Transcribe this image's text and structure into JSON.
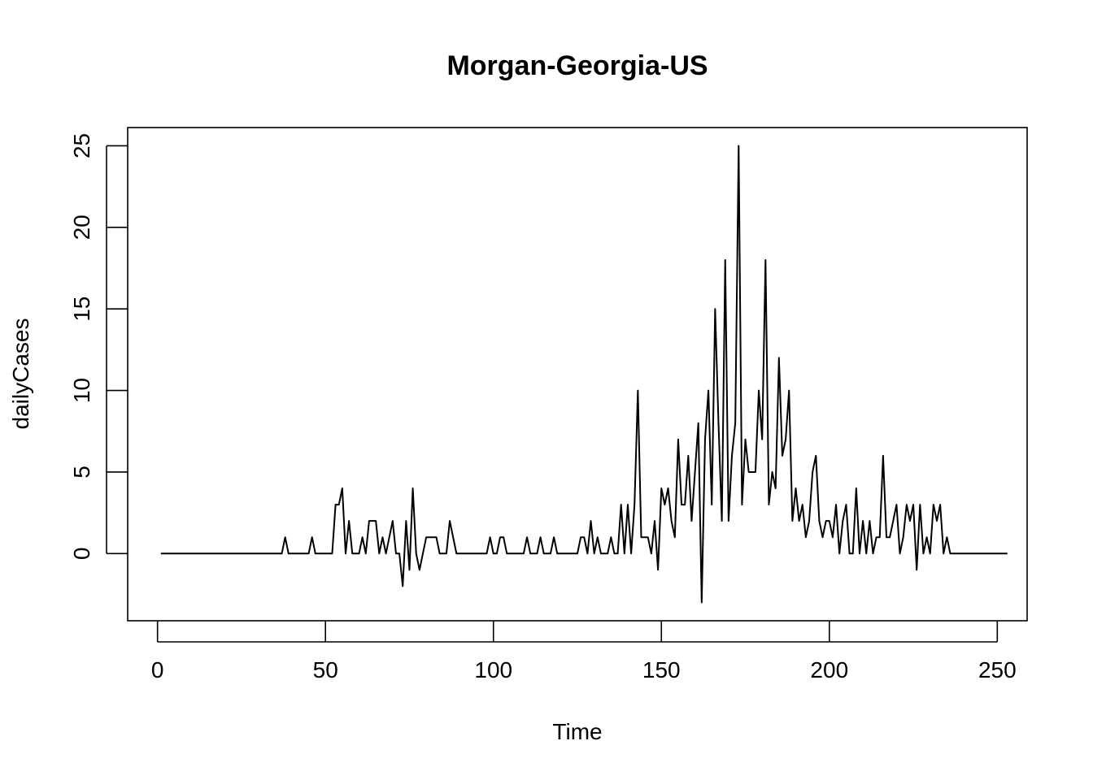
{
  "chart_data": {
    "type": "line",
    "title": "Morgan-Georgia-US",
    "xlabel": "Time",
    "ylabel": "dailyCases",
    "xlim": [
      -8.88,
      258.88
    ],
    "ylim": [
      -4.12,
      26.12
    ],
    "x_ticks": [
      0,
      50,
      100,
      150,
      200,
      250
    ],
    "y_ticks": [
      0,
      5,
      10,
      15,
      20,
      25
    ],
    "grid": false,
    "legend": "none",
    "line_color": "#000000",
    "x_start": 1,
    "series": [
      {
        "values": [
          0,
          0,
          0,
          0,
          0,
          0,
          0,
          0,
          0,
          0,
          0,
          0,
          0,
          0,
          0,
          0,
          0,
          0,
          0,
          0,
          0,
          0,
          0,
          0,
          0,
          0,
          0,
          0,
          0,
          0,
          0,
          0,
          0,
          0,
          0,
          0,
          0,
          1,
          0,
          0,
          0,
          0,
          0,
          0,
          0,
          1,
          0,
          0,
          0,
          0,
          0,
          0,
          3,
          3,
          4,
          0,
          2,
          0,
          0,
          0,
          1,
          0,
          2,
          2,
          2,
          0,
          1,
          0,
          1,
          2,
          0,
          0,
          -2,
          2,
          -1,
          4,
          0,
          -1,
          0,
          1,
          1,
          1,
          1,
          0,
          0,
          0,
          2,
          1,
          0,
          0,
          0,
          0,
          0,
          0,
          0,
          0,
          0,
          0,
          1,
          0,
          0,
          1,
          1,
          0,
          0,
          0,
          0,
          0,
          0,
          1,
          0,
          0,
          0,
          1,
          0,
          0,
          0,
          1,
          0,
          0,
          0,
          0,
          0,
          0,
          0,
          1,
          1,
          0,
          2,
          0,
          1,
          0,
          0,
          0,
          1,
          0,
          0,
          3,
          0,
          3,
          0,
          3,
          10,
          1,
          1,
          1,
          0,
          2,
          -1,
          4,
          3,
          4,
          2,
          1,
          7,
          3,
          3,
          6,
          2,
          5,
          8,
          -3,
          7,
          10,
          3,
          15,
          8,
          2,
          18,
          2,
          6,
          8,
          25,
          3,
          7,
          5,
          5,
          5,
          10,
          7,
          18,
          3,
          5,
          4,
          12,
          6,
          7,
          10,
          2,
          4,
          2,
          3,
          1,
          2,
          5,
          6,
          2,
          1,
          2,
          2,
          1,
          3,
          0,
          2,
          3,
          0,
          0,
          4,
          0,
          2,
          0,
          2,
          0,
          1,
          1,
          6,
          1,
          1,
          2,
          3,
          0,
          1,
          3,
          2,
          3,
          -1,
          3,
          0,
          1,
          0,
          3,
          2,
          3,
          0,
          1,
          0,
          0,
          0,
          0,
          0,
          0,
          0,
          0,
          0,
          0,
          0,
          0,
          0,
          0,
          0,
          0,
          0,
          0
        ]
      }
    ]
  }
}
